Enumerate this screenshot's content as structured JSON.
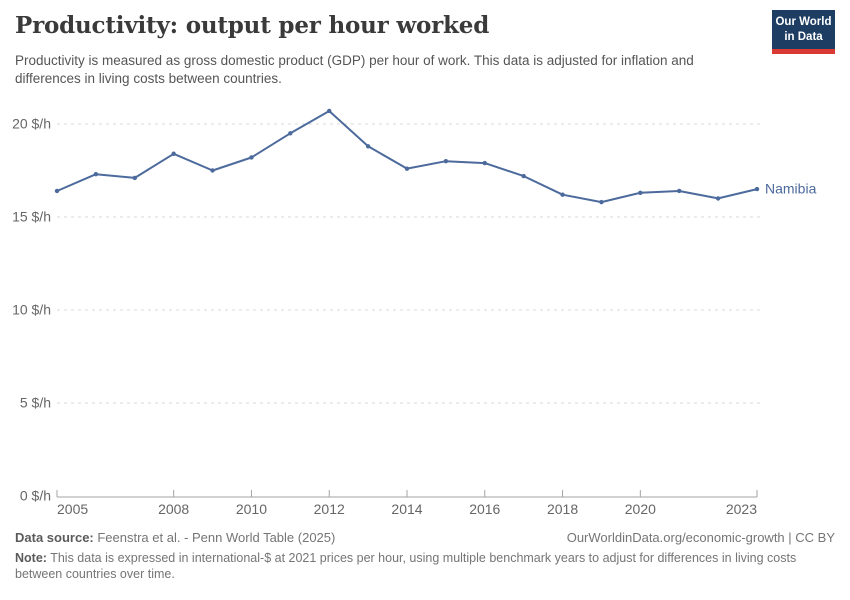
{
  "header": {
    "title": "Productivity: output per hour worked",
    "subtitle": "Productivity is measured as gross domestic product (GDP) per hour of work. This data is adjusted for inflation and differences in living costs between countries.",
    "logo": {
      "line1": "Our World",
      "line2": "in Data"
    }
  },
  "chart_data": {
    "type": "line",
    "title": "Productivity: output per hour worked",
    "x": [
      2005,
      2006,
      2007,
      2008,
      2009,
      2010,
      2011,
      2012,
      2013,
      2014,
      2015,
      2016,
      2017,
      2018,
      2019,
      2020,
      2021,
      2022,
      2023
    ],
    "series": [
      {
        "name": "Namibia",
        "values": [
          16.4,
          17.3,
          17.1,
          18.4,
          17.5,
          18.2,
          19.5,
          20.7,
          18.8,
          17.6,
          18.0,
          17.9,
          17.2,
          16.2,
          15.8,
          16.3,
          16.4,
          16.0,
          16.5
        ]
      }
    ],
    "xlim": [
      2005,
      2023
    ],
    "ylim": [
      0,
      22
    ],
    "yticks": [
      0,
      5,
      10,
      15,
      20
    ],
    "ytick_labels": [
      "0 $/h",
      "5 $/h",
      "10 $/h",
      "15 $/h",
      "20 $/h"
    ],
    "xticks": [
      2005,
      2008,
      2010,
      2012,
      2014,
      2016,
      2018,
      2020,
      2023
    ],
    "grid": "horizontal-dashed",
    "legend_position": "end-of-line-label",
    "unit": "international-$ per hour"
  },
  "footer": {
    "source_label": "Data source:",
    "source_text": " Feenstra et al. - Penn World Table (2025)",
    "link_text": "OurWorldinData.org/economic-growth | CC BY",
    "note_label": "Note:",
    "note_text": " This data is expressed in international-$ at 2021 prices per hour, using multiple benchmark years to adjust for differences in living costs between countries over time."
  },
  "colors": {
    "line": "#4C6A9C",
    "entity_label": "#4C6A9C",
    "grid": "#d8d8d8",
    "axis": "#a3a3a3",
    "tick_label": "#666666",
    "logo_bg": "#1d3d63",
    "logo_accent": "#d93a34"
  }
}
